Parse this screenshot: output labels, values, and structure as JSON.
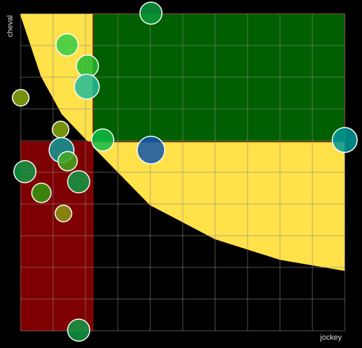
{
  "chart_data": {
    "type": "bubble",
    "x_label": "jockey",
    "y_label": "cheval",
    "xlim": [
      0,
      100
    ],
    "ylim": [
      0,
      100
    ],
    "xticks": [
      0,
      10,
      20,
      30,
      40,
      50,
      60,
      70,
      80,
      90,
      100
    ],
    "yticks": [
      0,
      10,
      20,
      30,
      40,
      50,
      60,
      70,
      80,
      90,
      100
    ],
    "grid": true,
    "background": "#000000",
    "curve": {
      "color": "#ffe14a",
      "x": [
        0,
        6.4,
        12.8,
        22.3,
        40,
        60,
        80,
        100
      ],
      "y": [
        100,
        80.4,
        68.5,
        58.3,
        39.8,
        29.1,
        22.6,
        19.1
      ]
    },
    "regions": [
      {
        "color": "#005f00",
        "xlim": [
          22.3,
          100
        ],
        "ylim": [
          59.6,
          100
        ]
      },
      {
        "color": "#7f0000",
        "xlim": [
          0,
          22.3
        ],
        "ylim": [
          0,
          59.6
        ]
      }
    ],
    "x": [
      40.2,
      14.3,
      20.6,
      20.4,
      0,
      12.3,
      25.3,
      40.2,
      100,
      12.6,
      14.5,
      1.3,
      17.9,
      6.4,
      13.2,
      17.9
    ],
    "y": [
      100.2,
      90.2,
      83.5,
      77.0,
      73.5,
      63.5,
      60.2,
      57.0,
      60.2,
      57.0,
      53.5,
      50.2,
      47.0,
      43.5,
      37.0,
      0.2
    ],
    "sizes": [
      16,
      16,
      16,
      18,
      12,
      12,
      16,
      20,
      18,
      18,
      14,
      16,
      16,
      14,
      12,
      16
    ],
    "colors": [
      "#0a9a3a",
      "#33cc44",
      "#22bb33",
      "#22bb99",
      "#88aa11",
      "#88aa11",
      "#11bb44",
      "#1155aa",
      "#009999",
      "#119999",
      "#44aa22",
      "#119944",
      "#119944",
      "#339911",
      "#889911",
      "#119944"
    ]
  }
}
